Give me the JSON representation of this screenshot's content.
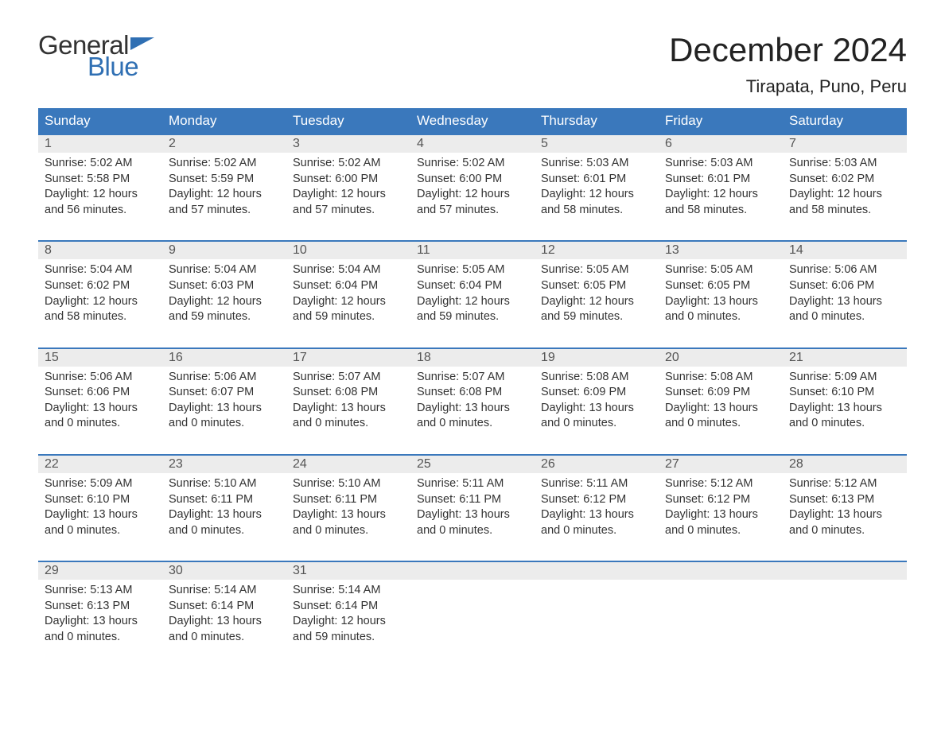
{
  "logo": {
    "text1": "General",
    "text2": "Blue",
    "flag_color": "#2f6fb3"
  },
  "title": "December 2024",
  "location": "Tirapata, Puno, Peru",
  "colors": {
    "header_bg": "#3a78bc",
    "header_text": "#ffffff",
    "daynum_bg": "#ececec",
    "daynum_text": "#555555",
    "body_text": "#333333",
    "week_border": "#3a78bc",
    "logo_blue": "#2f6fb3"
  },
  "weekdays": [
    "Sunday",
    "Monday",
    "Tuesday",
    "Wednesday",
    "Thursday",
    "Friday",
    "Saturday"
  ],
  "weeks": [
    [
      {
        "n": "1",
        "sr": "5:02 AM",
        "ss": "5:58 PM",
        "dl": "12 hours and 56 minutes."
      },
      {
        "n": "2",
        "sr": "5:02 AM",
        "ss": "5:59 PM",
        "dl": "12 hours and 57 minutes."
      },
      {
        "n": "3",
        "sr": "5:02 AM",
        "ss": "6:00 PM",
        "dl": "12 hours and 57 minutes."
      },
      {
        "n": "4",
        "sr": "5:02 AM",
        "ss": "6:00 PM",
        "dl": "12 hours and 57 minutes."
      },
      {
        "n": "5",
        "sr": "5:03 AM",
        "ss": "6:01 PM",
        "dl": "12 hours and 58 minutes."
      },
      {
        "n": "6",
        "sr": "5:03 AM",
        "ss": "6:01 PM",
        "dl": "12 hours and 58 minutes."
      },
      {
        "n": "7",
        "sr": "5:03 AM",
        "ss": "6:02 PM",
        "dl": "12 hours and 58 minutes."
      }
    ],
    [
      {
        "n": "8",
        "sr": "5:04 AM",
        "ss": "6:02 PM",
        "dl": "12 hours and 58 minutes."
      },
      {
        "n": "9",
        "sr": "5:04 AM",
        "ss": "6:03 PM",
        "dl": "12 hours and 59 minutes."
      },
      {
        "n": "10",
        "sr": "5:04 AM",
        "ss": "6:04 PM",
        "dl": "12 hours and 59 minutes."
      },
      {
        "n": "11",
        "sr": "5:05 AM",
        "ss": "6:04 PM",
        "dl": "12 hours and 59 minutes."
      },
      {
        "n": "12",
        "sr": "5:05 AM",
        "ss": "6:05 PM",
        "dl": "12 hours and 59 minutes."
      },
      {
        "n": "13",
        "sr": "5:05 AM",
        "ss": "6:05 PM",
        "dl": "13 hours and 0 minutes."
      },
      {
        "n": "14",
        "sr": "5:06 AM",
        "ss": "6:06 PM",
        "dl": "13 hours and 0 minutes."
      }
    ],
    [
      {
        "n": "15",
        "sr": "5:06 AM",
        "ss": "6:06 PM",
        "dl": "13 hours and 0 minutes."
      },
      {
        "n": "16",
        "sr": "5:06 AM",
        "ss": "6:07 PM",
        "dl": "13 hours and 0 minutes."
      },
      {
        "n": "17",
        "sr": "5:07 AM",
        "ss": "6:08 PM",
        "dl": "13 hours and 0 minutes."
      },
      {
        "n": "18",
        "sr": "5:07 AM",
        "ss": "6:08 PM",
        "dl": "13 hours and 0 minutes."
      },
      {
        "n": "19",
        "sr": "5:08 AM",
        "ss": "6:09 PM",
        "dl": "13 hours and 0 minutes."
      },
      {
        "n": "20",
        "sr": "5:08 AM",
        "ss": "6:09 PM",
        "dl": "13 hours and 0 minutes."
      },
      {
        "n": "21",
        "sr": "5:09 AM",
        "ss": "6:10 PM",
        "dl": "13 hours and 0 minutes."
      }
    ],
    [
      {
        "n": "22",
        "sr": "5:09 AM",
        "ss": "6:10 PM",
        "dl": "13 hours and 0 minutes."
      },
      {
        "n": "23",
        "sr": "5:10 AM",
        "ss": "6:11 PM",
        "dl": "13 hours and 0 minutes."
      },
      {
        "n": "24",
        "sr": "5:10 AM",
        "ss": "6:11 PM",
        "dl": "13 hours and 0 minutes."
      },
      {
        "n": "25",
        "sr": "5:11 AM",
        "ss": "6:11 PM",
        "dl": "13 hours and 0 minutes."
      },
      {
        "n": "26",
        "sr": "5:11 AM",
        "ss": "6:12 PM",
        "dl": "13 hours and 0 minutes."
      },
      {
        "n": "27",
        "sr": "5:12 AM",
        "ss": "6:12 PM",
        "dl": "13 hours and 0 minutes."
      },
      {
        "n": "28",
        "sr": "5:12 AM",
        "ss": "6:13 PM",
        "dl": "13 hours and 0 minutes."
      }
    ],
    [
      {
        "n": "29",
        "sr": "5:13 AM",
        "ss": "6:13 PM",
        "dl": "13 hours and 0 minutes."
      },
      {
        "n": "30",
        "sr": "5:14 AM",
        "ss": "6:14 PM",
        "dl": "13 hours and 0 minutes."
      },
      {
        "n": "31",
        "sr": "5:14 AM",
        "ss": "6:14 PM",
        "dl": "12 hours and 59 minutes."
      },
      null,
      null,
      null,
      null
    ]
  ],
  "labels": {
    "sunrise": "Sunrise: ",
    "sunset": "Sunset: ",
    "daylight": "Daylight: "
  }
}
